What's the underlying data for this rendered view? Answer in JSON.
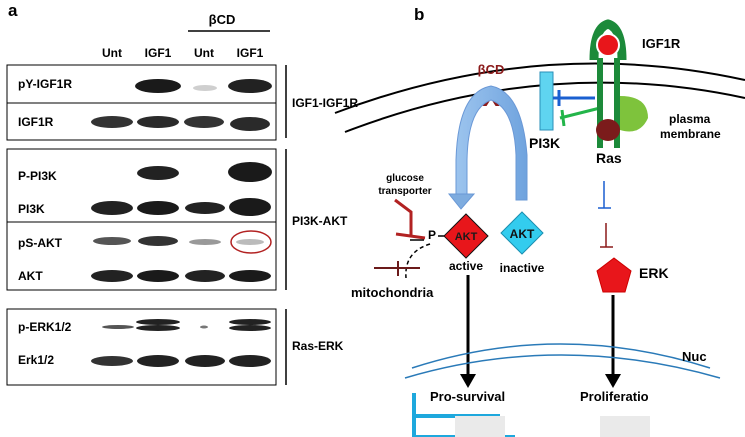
{
  "panel_a": {
    "letter": "a",
    "group_header": "βCD",
    "columns": [
      "Unt",
      "IGF1",
      "Unt",
      "IGF1"
    ],
    "box1": {
      "rows": [
        "pY-IGF1R",
        "IGF1R"
      ],
      "pathway": "IGF1-IGF1R"
    },
    "box2": {
      "rows": [
        "P-PI3K",
        "PI3K",
        "pS-AKT",
        "AKT"
      ],
      "pathway": "PI3K-AKT"
    },
    "box3": {
      "rows": [
        "p-ERK1/2",
        "Erk1/2"
      ],
      "pathway": "Ras-ERK"
    }
  },
  "panel_b": {
    "letter": "b",
    "bcd": "βCD",
    "igf1r": "IGF1R",
    "plasma": [
      "plasma",
      "membrane"
    ],
    "pi3k": "PI3K",
    "ras": "Ras",
    "glucose": [
      "glucose",
      "transporter"
    ],
    "p": "P",
    "akt_active": "AKT",
    "akt_inactive": "AKT",
    "active": "active",
    "inactive": "inactive",
    "mitochondria": "mitochondria",
    "erk": "ERK",
    "nuc": "Nuc",
    "prosurvival": "Pro-survival",
    "proliferation": "Proliferatio",
    "colors": {
      "akt_active": "#e8161b",
      "akt_inactive": "#33ccee",
      "arrow_blue": "#8fb8e8",
      "receptor_green": "#1c8a3a",
      "inhibitor_dark": "#8b1a1a",
      "inhibitor_blue": "#1a5fd0",
      "nuc_line": "#2a7ab8"
    }
  }
}
